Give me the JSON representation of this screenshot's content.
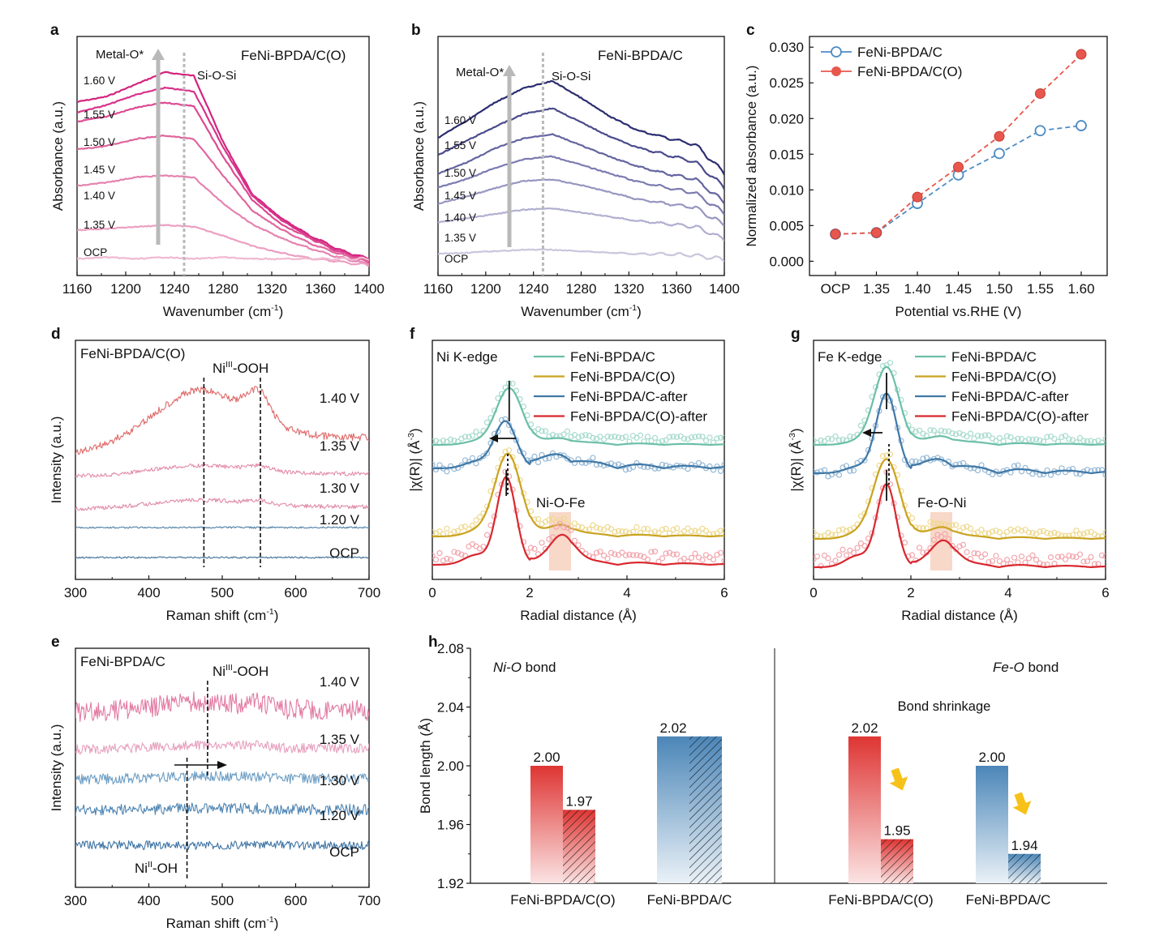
{
  "colors": {
    "pinkDark": "#d4247f",
    "pinkMid": "#e0669e",
    "pinkLight": "#f0b9d0",
    "navy": "#2b2c6e",
    "lavender": "#c9c6dd",
    "blue": "#4d8cc4",
    "red": "#e8574d",
    "teal": "#6cbfa8",
    "gold": "#c9a320",
    "steel": "#3f78a6",
    "crimson": "#d8282f",
    "grayArrow": "#b9b9b9",
    "gradRedTop": "#de3533",
    "gradBlueTop": "#4b86b8",
    "yellowArrow": "#f6c21a"
  },
  "panels": {
    "a": {
      "letter": "a",
      "title": "FeNi-BPDA/C(O)",
      "ylabel": "Absorbance (a.u.)",
      "xlabel": "Wavenumber (cm",
      "xlabel_sup": "-1",
      "xlabel_end": ")",
      "xticks": [
        "1160",
        "1200",
        "1240",
        "1280",
        "1320",
        "1360",
        "1400"
      ],
      "peak1": "Metal-O*",
      "peak2": "Si-O-Si",
      "curve_labels": [
        "1.60 V",
        "1.55 V",
        "1.50 V",
        "1.45 V",
        "1.40 V",
        "1.35 V",
        "OCP"
      ]
    },
    "b": {
      "letter": "b",
      "title": "FeNi-BPDA/C",
      "ylabel": "Absorbance (a.u.)",
      "xlabel": "Wavenumber (cm",
      "xlabel_sup": "-1",
      "xlabel_end": ")",
      "xticks": [
        "1160",
        "1200",
        "1240",
        "1280",
        "1320",
        "1360",
        "1400"
      ],
      "peak1": "Metal-O*",
      "peak2": "Si-O-Si",
      "curve_labels": [
        "1.60 V",
        "1.55 V",
        "1.50 V",
        "1.45 V",
        "1.40 V",
        "1.35 V",
        "OCP"
      ]
    },
    "c": {
      "letter": "c",
      "ylabel": "Normalized absorbance (a.u.)",
      "xlabel": "Potential vs.RHE (V)",
      "yticks": [
        "0.000",
        "0.005",
        "0.010",
        "0.015",
        "0.020",
        "0.025",
        "0.030"
      ]
    },
    "d": {
      "letter": "d",
      "title": "FeNi-BPDA/C(O)",
      "ylabel": "Intensity (a.u.)",
      "xlabel": "Raman shift (cm",
      "xlabel_sup": "-1",
      "xlabel_end": ")",
      "xticks": [
        "300",
        "400",
        "500",
        "600",
        "700"
      ],
      "peak_pre": "Ni",
      "peak_sup": "III",
      "peak_post": "-OOH",
      "curve_labels": [
        "1.40 V",
        "1.35 V",
        "1.30 V",
        "1.20 V",
        "OCP"
      ]
    },
    "e": {
      "letter": "e",
      "title": "FeNi-BPDA/C",
      "ylabel": "Intensity (a.u.)",
      "xlabel": "Raman shift (cm",
      "xlabel_sup": "-1",
      "xlabel_end": ")",
      "xticks": [
        "300",
        "400",
        "500",
        "600",
        "700"
      ],
      "peak_pre": "Ni",
      "peak_sup": "III",
      "peak_post": "-OOH",
      "peak2_pre": "Ni",
      "peak2_sup": "II",
      "peak2_post": "-OH",
      "curve_labels": [
        "1.40 V",
        "1.35 V",
        "1.30 V",
        "1.20 V",
        "OCP"
      ]
    },
    "f": {
      "letter": "f",
      "edge": "Ni K-edge",
      "bond": "Ni-O-Fe",
      "ylabel_pre": "|χ(R)| (Å",
      "ylabel_sup": "-3",
      "ylabel_end": ")",
      "xlabel": "Radial distance (Å)",
      "xticks": [
        "0",
        "2",
        "4",
        "6"
      ],
      "legend": [
        "FeNi-BPDA/C",
        "FeNi-BPDA/C(O)",
        "FeNi-BPDA/C-after",
        "FeNi-BPDA/C(O)-after"
      ]
    },
    "g": {
      "letter": "g",
      "edge": "Fe K-edge",
      "bond": "Fe-O-Ni",
      "ylabel_pre": "|χ(R)| (Å",
      "ylabel_sup": "-3",
      "ylabel_end": ")",
      "xlabel": "Radial distance (Å)",
      "xticks": [
        "0",
        "2",
        "4",
        "6"
      ],
      "legend": [
        "FeNi-BPDA/C",
        "FeNi-BPDA/C(O)",
        "FeNi-BPDA/C-after",
        "FeNi-BPDA/C(O)-after"
      ]
    },
    "h": {
      "letter": "h",
      "ylabel": "Bond length (Å)",
      "left_title_it": "Ni-O",
      "left_title_rest": " bond",
      "right_title_it": "Fe-O",
      "right_title_rest": " bond",
      "shrink": "Bond shrinkage",
      "yticks": [
        "1.92",
        "1.96",
        "2.00",
        "2.04",
        "2.08"
      ]
    }
  },
  "chart_data": [
    {
      "panel": "a",
      "type": "line",
      "title": "FeNi-BPDA/C(O)",
      "xlabel": "Wavenumber (cm-1)",
      "ylabel": "Absorbance (a.u.)",
      "xlim": [
        1160,
        1400
      ],
      "series": [
        {
          "name": "1.60 V",
          "shape": [
            95,
            98,
            105,
            112,
            110,
            72,
            42,
            28,
            18,
            10,
            5
          ]
        },
        {
          "name": "1.55 V",
          "shape": [
            90,
            94,
            100,
            104,
            102,
            70,
            42,
            28,
            18,
            10,
            5
          ]
        },
        {
          "name": "1.50 V",
          "shape": [
            85,
            88,
            93,
            96,
            94,
            65,
            40,
            26,
            18,
            10,
            5
          ]
        },
        {
          "name": "1.45 V",
          "shape": [
            70,
            72,
            76,
            78,
            76,
            55,
            35,
            24,
            16,
            10,
            5
          ]
        },
        {
          "name": "1.40 V",
          "shape": [
            50,
            52,
            55,
            56,
            55,
            40,
            28,
            20,
            14,
            9,
            5
          ]
        },
        {
          "name": "1.35 V",
          "shape": [
            25,
            26,
            27,
            28,
            27,
            22,
            16,
            12,
            9,
            7,
            5
          ]
        },
        {
          "name": "OCP",
          "shape": [
            3,
            4,
            3,
            4,
            3,
            4,
            3,
            3,
            3,
            3,
            3
          ]
        }
      ]
    },
    {
      "panel": "b",
      "type": "line",
      "title": "FeNi-BPDA/C",
      "xlabel": "Wavenumber (cm-1)",
      "ylabel": "Absorbance (a.u.)",
      "xlim": [
        1160,
        1400
      ],
      "series": [
        {
          "name": "1.60 V",
          "shape": [
            100,
            112,
            125,
            135,
            140,
            128,
            115,
            105,
            100,
            95,
            75
          ]
        },
        {
          "name": "1.55 V",
          "shape": [
            85,
            95,
            105,
            114,
            118,
            108,
            98,
            90,
            85,
            80,
            62
          ]
        },
        {
          "name": "1.50 V",
          "shape": [
            70,
            78,
            88,
            95,
            98,
            90,
            82,
            75,
            70,
            66,
            50
          ]
        },
        {
          "name": "1.45 V",
          "shape": [
            58,
            64,
            72,
            78,
            80,
            74,
            68,
            62,
            58,
            54,
            40
          ]
        },
        {
          "name": "1.40 V",
          "shape": [
            45,
            50,
            56,
            61,
            62,
            58,
            53,
            48,
            45,
            42,
            30
          ]
        },
        {
          "name": "1.35 V",
          "shape": [
            30,
            33,
            36,
            39,
            40,
            37,
            34,
            31,
            29,
            27,
            18
          ]
        },
        {
          "name": "OCP",
          "shape": [
            10,
            11,
            12,
            13,
            13,
            12,
            11,
            10,
            10,
            9,
            6
          ]
        }
      ]
    },
    {
      "panel": "c",
      "type": "line",
      "xlabel": "Potential vs.RHE (V)",
      "ylabel": "Normalized absorbance (a.u.)",
      "categories": [
        "OCP",
        "1.35",
        "1.40",
        "1.45",
        "1.50",
        "1.55",
        "1.60"
      ],
      "ylim": [
        -0.002,
        0.0315
      ],
      "series": [
        {
          "name": "FeNi-BPDA/C",
          "values": [
            0.0038,
            0.004,
            0.0081,
            0.0121,
            0.0151,
            0.0183,
            0.019
          ]
        },
        {
          "name": "FeNi-BPDA/C(O)",
          "values": [
            0.0038,
            0.004,
            0.009,
            0.0132,
            0.0175,
            0.0235,
            0.029
          ]
        }
      ]
    },
    {
      "panel": "d",
      "type": "line",
      "title": "FeNi-BPDA/C(O)",
      "xlabel": "Raman shift (cm-1)",
      "ylabel": "Intensity (a.u.)",
      "xlim": [
        300,
        700
      ],
      "annotations": {
        "NiIII-OOH": [
          475,
          552
        ]
      },
      "series": [
        {
          "name": "1.40 V"
        },
        {
          "name": "1.35 V"
        },
        {
          "name": "1.30 V"
        },
        {
          "name": "1.20 V"
        },
        {
          "name": "OCP"
        }
      ]
    },
    {
      "panel": "e",
      "type": "line",
      "title": "FeNi-BPDA/C",
      "xlabel": "Raman shift (cm-1)",
      "ylabel": "Intensity (a.u.)",
      "xlim": [
        300,
        700
      ],
      "annotations": {
        "NiIII-OOH": 480,
        "NiII-OH": 452
      },
      "series": [
        {
          "name": "1.40 V"
        },
        {
          "name": "1.35 V"
        },
        {
          "name": "1.30 V"
        },
        {
          "name": "1.20 V"
        },
        {
          "name": "OCP"
        }
      ]
    },
    {
      "panel": "f",
      "type": "line",
      "xlabel": "Radial distance (Å)",
      "ylabel": "|χ(R)| (Å-3)",
      "xlim": [
        0,
        6
      ],
      "series": [
        {
          "name": "FeNi-BPDA/C"
        },
        {
          "name": "FeNi-BPDA/C(O)"
        },
        {
          "name": "FeNi-BPDA/C-after"
        },
        {
          "name": "FeNi-BPDA/C(O)-after"
        }
      ]
    },
    {
      "panel": "g",
      "type": "line",
      "xlabel": "Radial distance (Å)",
      "ylabel": "|χ(R)| (Å-3)",
      "xlim": [
        0,
        6
      ],
      "series": [
        {
          "name": "FeNi-BPDA/C"
        },
        {
          "name": "FeNi-BPDA/C(O)"
        },
        {
          "name": "FeNi-BPDA/C-after"
        },
        {
          "name": "FeNi-BPDA/C(O)-after"
        }
      ]
    },
    {
      "panel": "h",
      "type": "bar",
      "ylabel": "Bond length (Å)",
      "ylim": [
        1.92,
        2.08
      ],
      "groups": [
        {
          "bond": "Ni-O",
          "category": "FeNi-BPDA/C(O)",
          "before": 2.0,
          "after": 1.97,
          "before_label": "2.00",
          "after_label": "1.97",
          "color": "red"
        },
        {
          "bond": "Ni-O",
          "category": "FeNi-BPDA/C",
          "before": 2.02,
          "after": 2.02,
          "before_label": "2.02",
          "after_label": "",
          "color": "blue"
        },
        {
          "bond": "Fe-O",
          "category": "FeNi-BPDA/C(O)",
          "before": 2.02,
          "after": 1.95,
          "before_label": "2.02",
          "after_label": "1.95",
          "color": "red"
        },
        {
          "bond": "Fe-O",
          "category": "FeNi-BPDA/C",
          "before": 2.0,
          "after": 1.94,
          "before_label": "2.00",
          "after_label": "1.94",
          "color": "blue"
        }
      ]
    }
  ]
}
